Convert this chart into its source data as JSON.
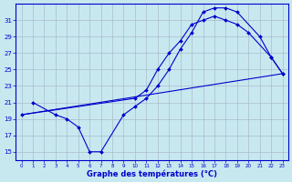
{
  "xlabel": "Graphe des températures (°C)",
  "bg_color": "#c8e8f0",
  "grid_color": "#aabbcc",
  "line_color": "#0000cc",
  "yticks": [
    15,
    17,
    19,
    21,
    23,
    25,
    27,
    29,
    31
  ],
  "ylim": [
    14,
    33
  ],
  "xlim": [
    -0.5,
    23.5
  ],
  "line1_x": [
    1,
    3,
    4,
    5,
    6,
    7,
    9,
    10,
    11,
    12,
    13,
    14,
    15,
    16,
    17,
    18,
    19,
    21,
    22,
    23
  ],
  "line1_y": [
    21,
    19.5,
    19,
    18,
    15,
    15,
    19.5,
    20.5,
    21.5,
    23.0,
    25.0,
    27.5,
    29.5,
    32.0,
    32.5,
    32.5,
    32.0,
    29.0,
    26.5,
    24.5
  ],
  "line2_x": [
    0,
    23
  ],
  "line2_y": [
    19.5,
    24.5
  ],
  "line3_x": [
    0,
    10,
    11,
    12,
    13,
    14,
    15,
    16,
    17,
    18,
    19,
    20,
    22,
    23
  ],
  "line3_y": [
    19.5,
    21.5,
    22.5,
    25.0,
    27.0,
    28.5,
    30.5,
    31.0,
    31.5,
    31.0,
    30.5,
    29.5,
    26.5,
    24.5
  ]
}
